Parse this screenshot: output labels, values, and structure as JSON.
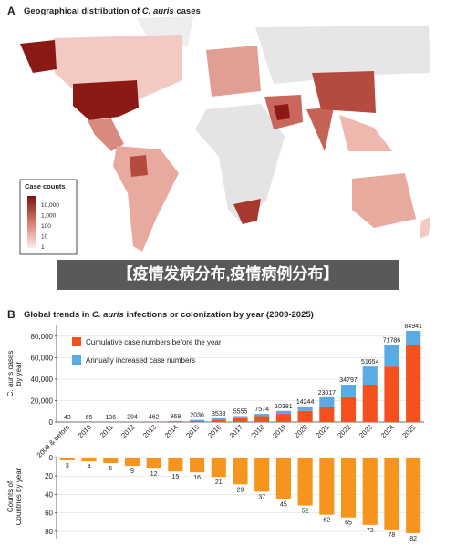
{
  "banner": "【疫情发病分布,疫情病例分布】",
  "chart_data": [
    {
      "type": "map",
      "panel": "A",
      "title": [
        "Geographical distribution of ",
        "C. auris",
        " cases"
      ],
      "legend_title": "Case counts",
      "legend_labels": [
        "10,000",
        "1,000",
        "100",
        "10",
        "1"
      ]
    },
    {
      "type": "stacked-bar",
      "panel": "B",
      "title": [
        "Global trends in ",
        "C. auris",
        " infections or colonization by year (2009-2025)"
      ],
      "y_label": [
        "C. auris cases",
        "by year"
      ],
      "categories": [
        "2009 & before",
        "2010",
        "2011",
        "2012",
        "2013",
        "2014",
        "2015",
        "2016",
        "2017",
        "2018",
        "2019",
        "2020",
        "2021",
        "2022",
        "2023",
        "2024",
        "2025"
      ],
      "series": [
        {
          "name": "Cumulative case numbers before the year",
          "color": "#f4511e",
          "values": [
            0,
            43,
            65,
            136,
            294,
            462,
            969,
            2036,
            3533,
            5555,
            7574,
            10381,
            14244,
            23017,
            34797,
            51654,
            71786
          ]
        },
        {
          "name": "Annually increased case numbers",
          "color": "#5aaae4",
          "values": [
            43,
            22,
            71,
            158,
            168,
            507,
            1067,
            1497,
            2022,
            2019,
            2807,
            3863,
            8773,
            11780,
            16857,
            20132,
            13155
          ]
        }
      ],
      "totals": [
        43,
        65,
        136,
        294,
        462,
        969,
        2036,
        3533,
        5555,
        7574,
        10381,
        14244,
        23017,
        34797,
        51654,
        71786,
        84941
      ],
      "ylim": [
        0,
        90000
      ],
      "yticks": [
        0,
        {
          "value": 20000,
          "label": "20,000"
        },
        {
          "value": 40000,
          "label": "40,000"
        },
        {
          "value": 60000,
          "label": "60,000"
        },
        {
          "value": 80000,
          "label": "80,000"
        }
      ],
      "grid": true
    },
    {
      "type": "bar",
      "y_label": [
        "Counts of",
        "Countries by year"
      ],
      "inverted": true,
      "color": "#f7941d",
      "values": [
        3,
        4,
        6,
        9,
        12,
        15,
        16,
        21,
        29,
        37,
        45,
        52,
        62,
        65,
        73,
        78,
        82
      ],
      "ylim": [
        0,
        88
      ],
      "yticks": [
        0,
        20,
        40,
        60,
        80
      ],
      "grid": true
    }
  ]
}
